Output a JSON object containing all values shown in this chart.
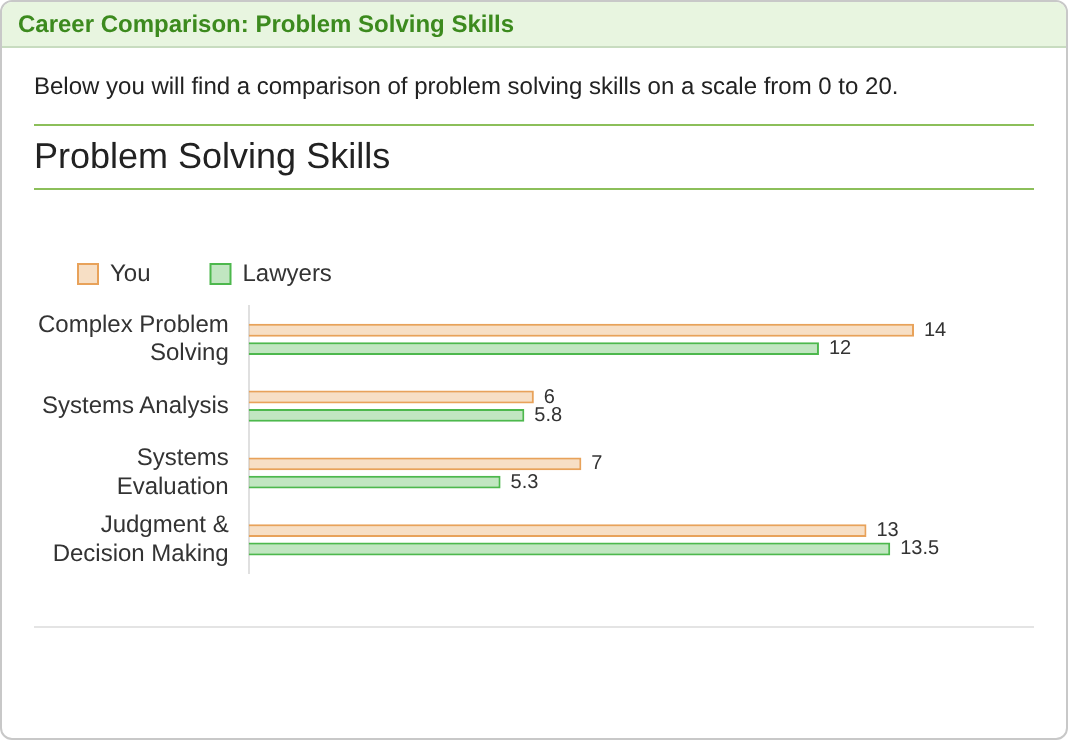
{
  "chart_data": {
    "type": "bar",
    "orientation": "horizontal",
    "title": "Problem Solving Skills",
    "annotations": [
      "Career Comparison: Problem Solving Skills",
      "Below you will find a comparison of problem solving skills on a scale from 0 to 20."
    ],
    "categories": [
      "Complex Problem Solving",
      "Systems Analysis",
      "Systems Evaluation",
      "Judgment & Decision Making"
    ],
    "series": [
      {
        "name": "You",
        "color": "#e8a25a",
        "values": [
          14,
          6,
          7,
          13
        ]
      },
      {
        "name": "Lawyers",
        "color": "#4db84d",
        "values": [
          12,
          5.8,
          5.3,
          13.5
        ]
      }
    ],
    "data_labels": true,
    "legend": "top left",
    "grid": false
  }
}
